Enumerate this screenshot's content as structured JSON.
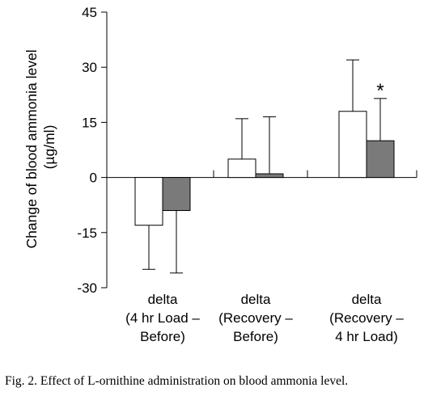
{
  "chart_data": {
    "type": "bar",
    "ylabel_lines": [
      "Change of blood ammonia level",
      "(µg/ml)"
    ],
    "ylim": [
      -30,
      45
    ],
    "yticks": [
      45,
      30,
      15,
      0,
      -15,
      -30
    ],
    "grid": false,
    "categories": [
      [
        "delta",
        "(4 hr Load –",
        "Before)"
      ],
      [
        "delta",
        "(Recovery –",
        "Before)"
      ],
      [
        "delta",
        "(Recovery –",
        "4 hr Load)"
      ]
    ],
    "series": [
      {
        "fill": "#ffffff",
        "values": [
          -13,
          5,
          18
        ],
        "error_high": [
          -25,
          16,
          32
        ]
      },
      {
        "fill": "#7a7a7a",
        "values": [
          -9,
          1,
          10
        ],
        "error_high": [
          -26,
          16.5,
          21.5
        ]
      }
    ],
    "annotations": [
      {
        "text": "*",
        "category_index": 2,
        "series_index": 1
      }
    ]
  },
  "caption": "Fig. 2. Effect of L-ornithine administration on blood ammonia level."
}
